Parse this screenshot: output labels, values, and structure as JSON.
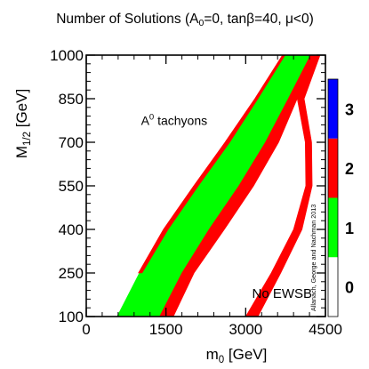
{
  "chart_data": {
    "type": "heatmap",
    "title_parts": {
      "prefix": "Number of Solutions (A",
      "sub": "0",
      "suffix": "=0, tanβ=40, μ<0)"
    },
    "xlabel": {
      "base": "m",
      "sub": "0",
      "suffix": " [GeV]"
    },
    "ylabel": {
      "base": "M",
      "sub": "1/2",
      "suffix": " [GeV]"
    },
    "xlim": [
      0,
      4500
    ],
    "ylim": [
      100,
      1000
    ],
    "x_ticks": [
      0,
      1500,
      3000,
      4500
    ],
    "y_ticks": [
      100,
      250,
      400,
      550,
      700,
      850,
      1000
    ],
    "x_tick_labels": [
      "0",
      "1500",
      "3000",
      "4500"
    ],
    "y_tick_labels": [
      "100",
      "250",
      "400",
      "550",
      "700",
      "850",
      "1000"
    ],
    "color_scale": {
      "levels": [
        0,
        1,
        2,
        3
      ],
      "labels": [
        "0",
        "1",
        "2",
        "3"
      ],
      "colors": [
        "#ffffff",
        "#00ff00",
        "#ff0000",
        "#0000ff"
      ],
      "range": [
        0,
        3
      ]
    },
    "regions": [
      {
        "level": 1,
        "polygon": [
          [
            580,
            100
          ],
          [
            1000,
            250
          ],
          [
            1470,
            400
          ],
          [
            2040,
            550
          ],
          [
            2630,
            700
          ],
          [
            3190,
            850
          ],
          [
            3700,
            1000
          ],
          [
            4300,
            1000
          ],
          [
            3900,
            850
          ],
          [
            3520,
            700
          ],
          [
            3050,
            550
          ],
          [
            2490,
            400
          ],
          [
            1970,
            250
          ],
          [
            1520,
            100
          ]
        ]
      },
      {
        "level": 2,
        "polygon": [
          [
            1380,
            100
          ],
          [
            1800,
            250
          ],
          [
            2310,
            400
          ],
          [
            2870,
            550
          ],
          [
            3370,
            700
          ],
          [
            3800,
            850
          ],
          [
            4220,
            1000
          ],
          [
            4350,
            1000
          ],
          [
            3970,
            850
          ],
          [
            3620,
            700
          ],
          [
            3150,
            550
          ],
          [
            2600,
            400
          ],
          [
            2030,
            250
          ],
          [
            1640,
            100
          ]
        ]
      },
      {
        "level": 2,
        "polygon": [
          [
            980,
            250
          ],
          [
            1450,
            400
          ],
          [
            2020,
            550
          ],
          [
            2610,
            700
          ],
          [
            3170,
            850
          ],
          [
            3690,
            1000
          ],
          [
            3740,
            1000
          ],
          [
            3230,
            850
          ],
          [
            2700,
            700
          ],
          [
            2110,
            550
          ],
          [
            1540,
            400
          ],
          [
            1050,
            250
          ]
        ]
      },
      {
        "level": 2,
        "polygon": [
          [
            3970,
            850
          ],
          [
            4120,
            700
          ],
          [
            4130,
            550
          ],
          [
            3900,
            400
          ],
          [
            3480,
            250
          ],
          [
            3000,
            100
          ],
          [
            3230,
            100
          ],
          [
            3660,
            250
          ],
          [
            4060,
            400
          ],
          [
            4250,
            550
          ],
          [
            4240,
            700
          ],
          [
            4100,
            850
          ],
          [
            4400,
            1000
          ],
          [
            4350,
            1000
          ]
        ]
      }
    ],
    "annotations": [
      {
        "text_base": "A",
        "text_sup": "0",
        "text_suffix": " tachyons",
        "x": 1030,
        "y": 760
      },
      {
        "text": "No EWSB",
        "x": 3120,
        "y": 165
      }
    ],
    "credit": "Allanach, George and Nachman 2013"
  }
}
